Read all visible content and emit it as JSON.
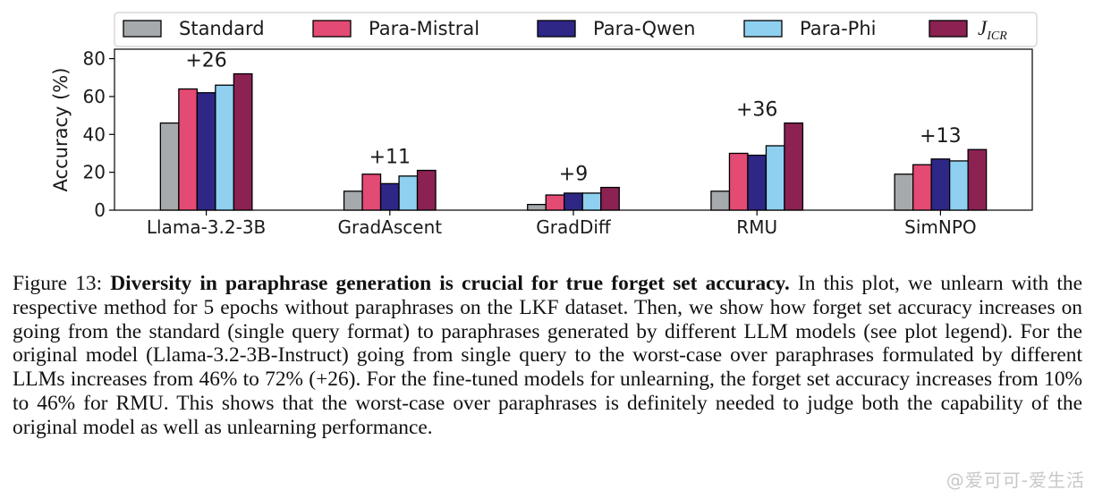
{
  "chart_data": {
    "type": "bar",
    "categories": [
      "Llama-3.2-3B",
      "GradAscent",
      "GradDiff",
      "RMU",
      "SimNPO"
    ],
    "series": [
      {
        "name": "Standard",
        "values": [
          46,
          10,
          3,
          10,
          19
        ],
        "color": "#a7aaac"
      },
      {
        "name": "Para-Mistral",
        "values": [
          64,
          19,
          8,
          30,
          24
        ],
        "color": "#e34a74"
      },
      {
        "name": "Para-Qwen",
        "values": [
          62,
          14,
          9,
          29,
          27
        ],
        "color": "#2e2786"
      },
      {
        "name": "Para-Phi",
        "values": [
          66,
          18,
          9,
          34,
          26
        ],
        "color": "#8fd0f0"
      },
      {
        "name": "J_ICR",
        "values": [
          72,
          21,
          12,
          46,
          32
        ],
        "color": "#8b2252"
      }
    ],
    "annotations": [
      "+26",
      "+11",
      "+9",
      "+36",
      "+13"
    ],
    "ylabel": "Accuracy (%)",
    "xlabel": "",
    "ylim": [
      0,
      85
    ],
    "yticks": [
      0,
      20,
      40,
      60,
      80
    ],
    "grid": false,
    "legend_placement": "top"
  },
  "caption": {
    "label": "Figure 13:",
    "bold": "Diversity in paraphrase generation is crucial for true forget set accuracy.",
    "text": "In this plot, we unlearn with the respective method for 5 epochs without paraphrases on the LKF dataset. Then, we show how forget set accuracy increases on going from the standard (single query format) to paraphrases generated by different LLM models (see plot legend). For the original model (Llama-3.2-3B-Instruct) going from single query to the worst-case over paraphrases formulated by different LLMs increases from 46% to 72% (+26). For the fine-tuned models for unlearning, the forget set accuracy increases from 10% to 46% for RMU. This shows that the worst-case over paraphrases is definitely needed to judge both the capability of the original model as well as unlearning performance."
  },
  "legend_icr": {
    "main": "J",
    "sub": "ICR"
  },
  "watermark": "@爱可可-爱生活"
}
